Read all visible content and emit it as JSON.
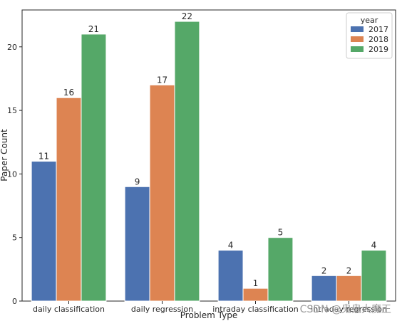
{
  "chart_data": {
    "type": "bar",
    "xlabel": "Problem Type",
    "ylabel": "Paper Count",
    "categories": [
      "daily classification",
      "daily regression",
      "intraday classification",
      "intraday regression"
    ],
    "series": [
      {
        "name": "2017",
        "values": [
          11,
          9,
          4,
          2
        ],
        "color": "#4c72b0"
      },
      {
        "name": "2018",
        "values": [
          16,
          17,
          1,
          2
        ],
        "color": "#dd8452"
      },
      {
        "name": "2019",
        "values": [
          21,
          22,
          5,
          4
        ],
        "color": "#55a868"
      }
    ],
    "ylim": [
      0,
      22.9
    ],
    "yticks": [
      0,
      5,
      10,
      15,
      20
    ],
    "legend": {
      "title": "year",
      "position": "top-right"
    },
    "grid": false
  },
  "watermark": "CSDN @鬼鬼大魔王"
}
